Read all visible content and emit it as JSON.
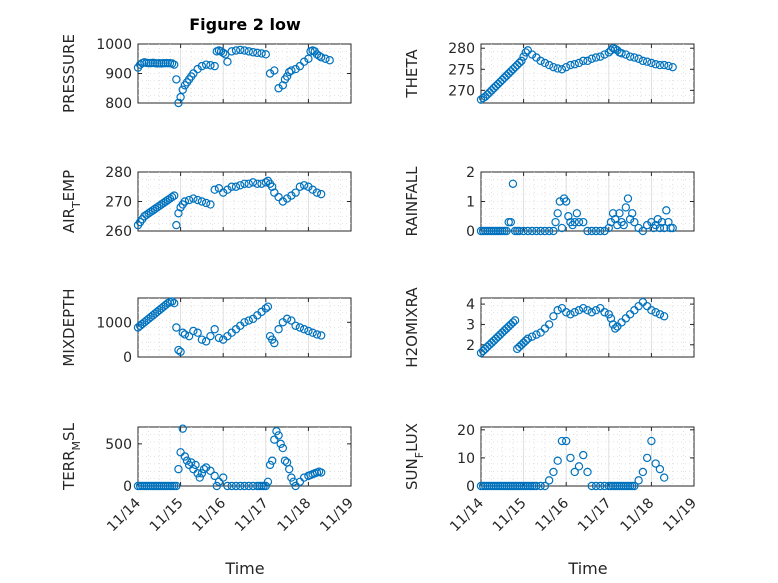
{
  "figure": {
    "title": "Figure 2 low",
    "x_axis_label": "Time",
    "x_tick_labels": [
      "11/14",
      "11/15",
      "11/16",
      "11/17",
      "11/18",
      "11/19"
    ]
  },
  "chart_data": [
    {
      "type": "scatter",
      "ylabel_main": "PRESSURE",
      "ylabel_sub": "",
      "ylim": [
        800,
        1000
      ],
      "yticks": [
        800,
        900,
        1000
      ],
      "xlim": [
        0,
        5
      ],
      "grid": true,
      "color": "#0072BD",
      "marker": "circle-open",
      "x": [
        0,
        0.05,
        0.1,
        0.15,
        0.2,
        0.25,
        0.3,
        0.35,
        0.4,
        0.45,
        0.5,
        0.55,
        0.6,
        0.65,
        0.7,
        0.75,
        0.8,
        0.85,
        0.9,
        0.95,
        1.0,
        1.05,
        1.1,
        1.15,
        1.2,
        1.25,
        1.3,
        1.4,
        1.5,
        1.6,
        1.7,
        1.8,
        1.85,
        1.9,
        1.95,
        2.0,
        2.05,
        2.1,
        2.2,
        2.3,
        2.4,
        2.5,
        2.6,
        2.7,
        2.8,
        2.9,
        3.0,
        3.1,
        3.2,
        3.3,
        3.4,
        3.45,
        3.5,
        3.55,
        3.6,
        3.7,
        3.8,
        3.9,
        4.0,
        4.05,
        4.1,
        4.15,
        4.2,
        4.25,
        4.3,
        4.4,
        4.5
      ],
      "y": [
        920,
        930,
        935,
        938,
        936,
        935,
        935,
        936,
        935,
        934,
        935,
        934,
        935,
        935,
        935,
        935,
        934,
        930,
        880,
        795,
        820,
        845,
        860,
        870,
        880,
        890,
        900,
        915,
        925,
        930,
        928,
        925,
        975,
        978,
        975,
        970,
        965,
        940,
        975,
        978,
        980,
        978,
        975,
        972,
        970,
        968,
        965,
        900,
        910,
        850,
        860,
        880,
        890,
        905,
        910,
        915,
        925,
        940,
        950,
        975,
        978,
        975,
        965,
        960,
        955,
        950,
        945
      ]
    },
    {
      "type": "scatter",
      "ylabel_main": "THETA",
      "ylabel_sub": "",
      "ylim": [
        267,
        281
      ],
      "yticks": [
        270,
        275,
        280
      ],
      "xlim": [
        0,
        5
      ],
      "grid": true,
      "color": "#0072BD",
      "marker": "circle-open",
      "x": [
        0,
        0.05,
        0.1,
        0.15,
        0.2,
        0.25,
        0.3,
        0.35,
        0.4,
        0.45,
        0.5,
        0.55,
        0.6,
        0.65,
        0.7,
        0.75,
        0.8,
        0.85,
        0.9,
        0.95,
        1.0,
        1.05,
        1.1,
        1.2,
        1.3,
        1.4,
        1.5,
        1.6,
        1.7,
        1.8,
        1.9,
        2.0,
        2.1,
        2.2,
        2.3,
        2.4,
        2.5,
        2.6,
        2.7,
        2.8,
        2.9,
        3.0,
        3.05,
        3.1,
        3.15,
        3.2,
        3.25,
        3.3,
        3.4,
        3.5,
        3.6,
        3.7,
        3.8,
        3.9,
        4.0,
        4.1,
        4.2,
        4.3,
        4.4,
        4.5
      ],
      "y": [
        267.8,
        268.2,
        268.5,
        269.0,
        269.5,
        270.0,
        270.5,
        271.0,
        271.5,
        272.0,
        272.5,
        273.0,
        273.5,
        274.0,
        274.5,
        275.0,
        275.5,
        276.0,
        276.5,
        277.0,
        278.0,
        279.0,
        279.5,
        278.5,
        277.8,
        277.0,
        276.5,
        276.0,
        275.5,
        275.2,
        275.0,
        275.5,
        276.0,
        276.2,
        276.5,
        277.0,
        277.0,
        277.5,
        277.8,
        278.0,
        278.5,
        279.0,
        279.5,
        280.0,
        279.8,
        279.5,
        279.0,
        278.8,
        278.5,
        278.0,
        277.8,
        277.5,
        277.0,
        276.8,
        276.5,
        276.2,
        276.0,
        276.0,
        275.8,
        275.5
      ]
    },
    {
      "type": "scatter",
      "ylabel_main": "AIR",
      "ylabel_sub": "T",
      "ylabel_rest": "EMP",
      "ylim": [
        260,
        280
      ],
      "yticks": [
        260,
        270,
        280
      ],
      "xlim": [
        0,
        5
      ],
      "grid": true,
      "color": "#0072BD",
      "marker": "circle-open",
      "x": [
        0,
        0.05,
        0.1,
        0.15,
        0.2,
        0.25,
        0.3,
        0.35,
        0.4,
        0.45,
        0.5,
        0.55,
        0.6,
        0.65,
        0.7,
        0.75,
        0.8,
        0.85,
        0.9,
        0.95,
        1.0,
        1.05,
        1.1,
        1.2,
        1.3,
        1.4,
        1.5,
        1.6,
        1.7,
        1.8,
        1.9,
        2.0,
        2.1,
        2.2,
        2.3,
        2.4,
        2.5,
        2.6,
        2.7,
        2.8,
        2.9,
        3.0,
        3.05,
        3.1,
        3.15,
        3.2,
        3.3,
        3.4,
        3.5,
        3.6,
        3.7,
        3.8,
        3.9,
        4.0,
        4.1,
        4.2,
        4.3
      ],
      "y": [
        262,
        263,
        264,
        265,
        265.5,
        266,
        266.5,
        267,
        267.5,
        268,
        268.5,
        269,
        269.5,
        270,
        270.5,
        271,
        271.5,
        272,
        262,
        266,
        268,
        269,
        270,
        270.5,
        271,
        270.5,
        270,
        269.5,
        269,
        274,
        274.5,
        273,
        274,
        275,
        275,
        275.5,
        276,
        276,
        276.5,
        276,
        276,
        276.5,
        277,
        276,
        275,
        273,
        271.5,
        270,
        271,
        272,
        273,
        275,
        275.5,
        275,
        274,
        273,
        272.5
      ]
    },
    {
      "type": "scatter",
      "ylabel_main": "RAINFALL",
      "ylabel_sub": "",
      "ylim": [
        0,
        2
      ],
      "yticks": [
        0,
        1,
        2
      ],
      "xlim": [
        0,
        5
      ],
      "grid": true,
      "color": "#0072BD",
      "marker": "circle-open",
      "x": [
        0,
        0.05,
        0.1,
        0.15,
        0.2,
        0.25,
        0.3,
        0.35,
        0.4,
        0.45,
        0.5,
        0.55,
        0.6,
        0.65,
        0.7,
        0.75,
        0.8,
        0.85,
        0.9,
        1.0,
        1.1,
        1.2,
        1.3,
        1.4,
        1.5,
        1.6,
        1.7,
        1.75,
        1.8,
        1.85,
        1.9,
        1.95,
        2.0,
        2.05,
        2.1,
        2.15,
        2.2,
        2.25,
        2.3,
        2.4,
        2.5,
        2.6,
        2.7,
        2.8,
        2.9,
        3.0,
        3.05,
        3.1,
        3.15,
        3.2,
        3.25,
        3.3,
        3.35,
        3.4,
        3.45,
        3.5,
        3.55,
        3.6,
        3.7,
        3.8,
        3.9,
        4.0,
        4.05,
        4.1,
        4.15,
        4.2,
        4.25,
        4.3,
        4.35,
        4.4,
        4.45,
        4.5
      ],
      "y": [
        0,
        0,
        0,
        0,
        0,
        0,
        0,
        0,
        0,
        0,
        0,
        0,
        0,
        0.3,
        0.3,
        1.6,
        0,
        0,
        0,
        0,
        0,
        0,
        0,
        0,
        0,
        0,
        0,
        0.3,
        0.6,
        1.0,
        0.1,
        1.1,
        1.0,
        0.5,
        0.3,
        0.2,
        0.3,
        0.6,
        0.3,
        0.3,
        0,
        0,
        0,
        0,
        0,
        0.1,
        0.3,
        0.6,
        0.4,
        0.2,
        0.6,
        0.3,
        0.2,
        0.8,
        1.1,
        0.4,
        0.6,
        0.3,
        0.1,
        0,
        0.2,
        0.3,
        0.1,
        0.2,
        0.4,
        0.1,
        0.3,
        0.1,
        0.7,
        0.3,
        0.1,
        0.1
      ]
    },
    {
      "type": "scatter",
      "ylabel_main": "MIXDEPTH",
      "ylabel_sub": "",
      "ylim": [
        0,
        1700
      ],
      "yticks": [
        0,
        1000
      ],
      "xlim": [
        0,
        5
      ],
      "grid": true,
      "color": "#0072BD",
      "marker": "circle-open",
      "x": [
        0,
        0.05,
        0.1,
        0.15,
        0.2,
        0.25,
        0.3,
        0.35,
        0.4,
        0.45,
        0.5,
        0.55,
        0.6,
        0.65,
        0.7,
        0.75,
        0.8,
        0.85,
        0.9,
        0.95,
        1.0,
        1.05,
        1.1,
        1.2,
        1.3,
        1.4,
        1.5,
        1.6,
        1.7,
        1.8,
        1.9,
        2.0,
        2.1,
        2.2,
        2.3,
        2.4,
        2.5,
        2.6,
        2.7,
        2.8,
        2.9,
        3.0,
        3.05,
        3.1,
        3.15,
        3.2,
        3.3,
        3.4,
        3.5,
        3.6,
        3.7,
        3.8,
        3.9,
        4.0,
        4.1,
        4.2,
        4.3
      ],
      "y": [
        850,
        900,
        950,
        1000,
        1050,
        1100,
        1150,
        1200,
        1250,
        1300,
        1350,
        1400,
        1450,
        1500,
        1550,
        1580,
        1600,
        1550,
        850,
        200,
        150,
        700,
        650,
        600,
        750,
        700,
        500,
        450,
        600,
        800,
        550,
        500,
        600,
        700,
        800,
        900,
        1000,
        1050,
        1100,
        1200,
        1300,
        1400,
        1450,
        600,
        500,
        400,
        800,
        1000,
        1100,
        1050,
        900,
        850,
        800,
        750,
        700,
        650,
        620
      ]
    },
    {
      "type": "scatter",
      "ylabel_main": "H2OMIXRA",
      "ylabel_sub": "",
      "ylim": [
        1.4,
        4.3
      ],
      "yticks": [
        2,
        3,
        4
      ],
      "xlim": [
        0,
        5
      ],
      "grid": true,
      "color": "#0072BD",
      "marker": "circle-open",
      "x": [
        0,
        0.05,
        0.1,
        0.15,
        0.2,
        0.25,
        0.3,
        0.35,
        0.4,
        0.45,
        0.5,
        0.55,
        0.6,
        0.65,
        0.7,
        0.75,
        0.8,
        0.85,
        0.9,
        0.95,
        1.0,
        1.05,
        1.1,
        1.2,
        1.3,
        1.4,
        1.5,
        1.6,
        1.7,
        1.8,
        1.9,
        2.0,
        2.1,
        2.2,
        2.3,
        2.4,
        2.5,
        2.6,
        2.7,
        2.8,
        2.9,
        3.0,
        3.05,
        3.1,
        3.15,
        3.2,
        3.3,
        3.4,
        3.5,
        3.6,
        3.7,
        3.8,
        3.9,
        4.0,
        4.1,
        4.2,
        4.3
      ],
      "y": [
        1.6,
        1.7,
        1.8,
        1.9,
        2.0,
        2.1,
        2.2,
        2.3,
        2.4,
        2.5,
        2.6,
        2.7,
        2.8,
        2.9,
        3.0,
        3.1,
        3.2,
        1.8,
        1.9,
        2.0,
        2.1,
        2.2,
        2.3,
        2.4,
        2.5,
        2.6,
        2.8,
        3.0,
        3.4,
        3.7,
        3.8,
        3.6,
        3.5,
        3.6,
        3.7,
        3.8,
        3.7,
        3.6,
        3.7,
        3.8,
        3.6,
        3.5,
        3.3,
        3.0,
        2.8,
        2.9,
        3.1,
        3.3,
        3.5,
        3.7,
        3.9,
        4.1,
        3.9,
        3.7,
        3.6,
        3.5,
        3.4
      ]
    },
    {
      "type": "scatter",
      "ylabel_main": "TERR",
      "ylabel_sub": "M",
      "ylabel_rest": "SL",
      "ylim": [
        0,
        700
      ],
      "yticks": [
        0,
        500
      ],
      "xlim": [
        0,
        5
      ],
      "grid": true,
      "color": "#0072BD",
      "marker": "circle-open",
      "x": [
        0,
        0.05,
        0.1,
        0.15,
        0.2,
        0.25,
        0.3,
        0.35,
        0.4,
        0.45,
        0.5,
        0.55,
        0.6,
        0.65,
        0.7,
        0.75,
        0.8,
        0.85,
        0.9,
        0.95,
        1.0,
        1.05,
        1.1,
        1.15,
        1.2,
        1.25,
        1.3,
        1.35,
        1.4,
        1.45,
        1.5,
        1.55,
        1.6,
        1.7,
        1.8,
        1.85,
        1.9,
        2.0,
        2.1,
        2.2,
        2.3,
        2.4,
        2.5,
        2.6,
        2.7,
        2.8,
        2.85,
        2.9,
        2.95,
        3.0,
        3.05,
        3.1,
        3.15,
        3.2,
        3.25,
        3.3,
        3.35,
        3.4,
        3.45,
        3.5,
        3.55,
        3.6,
        3.65,
        3.7,
        3.8,
        3.9,
        4.0,
        4.05,
        4.1,
        4.15,
        4.2,
        4.25,
        4.3
      ],
      "y": [
        0,
        0,
        0,
        0,
        0,
        0,
        0,
        0,
        0,
        0,
        0,
        0,
        0,
        0,
        0,
        0,
        0,
        0,
        0,
        200,
        400,
        680,
        350,
        300,
        250,
        280,
        200,
        250,
        150,
        100,
        150,
        200,
        220,
        180,
        120,
        0,
        50,
        100,
        0,
        0,
        0,
        0,
        0,
        0,
        0,
        0,
        0,
        0,
        0,
        0,
        50,
        250,
        300,
        550,
        650,
        600,
        500,
        450,
        300,
        280,
        200,
        100,
        50,
        0,
        50,
        100,
        120,
        130,
        140,
        150,
        160,
        170,
        160
      ]
    },
    {
      "type": "scatter",
      "ylabel_main": "SUN",
      "ylabel_sub": "F",
      "ylabel_rest": "LUX",
      "ylim": [
        0,
        21
      ],
      "yticks": [
        0,
        10,
        20
      ],
      "xlim": [
        0,
        5
      ],
      "grid": true,
      "color": "#0072BD",
      "marker": "circle-open",
      "x": [
        0,
        0.05,
        0.1,
        0.15,
        0.2,
        0.25,
        0.3,
        0.35,
        0.4,
        0.45,
        0.5,
        0.55,
        0.6,
        0.65,
        0.7,
        0.75,
        0.8,
        0.85,
        0.9,
        0.95,
        1.0,
        1.05,
        1.1,
        1.15,
        1.2,
        1.25,
        1.3,
        1.4,
        1.5,
        1.6,
        1.7,
        1.8,
        1.9,
        2.0,
        2.1,
        2.2,
        2.3,
        2.4,
        2.5,
        2.6,
        2.7,
        2.8,
        2.9,
        3.0,
        3.05,
        3.1,
        3.15,
        3.2,
        3.25,
        3.3,
        3.35,
        3.4,
        3.45,
        3.5,
        3.55,
        3.6,
        3.7,
        3.8,
        3.9,
        4.0,
        4.1,
        4.2,
        4.3
      ],
      "y": [
        0,
        0,
        0,
        0,
        0,
        0,
        0,
        0,
        0,
        0,
        0,
        0,
        0,
        0,
        0,
        0,
        0,
        0,
        0,
        0,
        0,
        0,
        0,
        0,
        0,
        0,
        0,
        0,
        0,
        2,
        5,
        9,
        16,
        16,
        10,
        5,
        7,
        11,
        5,
        0,
        0,
        0,
        0,
        0,
        0,
        0,
        0,
        0,
        0,
        0,
        0,
        0,
        0,
        0,
        0,
        0,
        2,
        5,
        10,
        16,
        8,
        6,
        3
      ]
    }
  ]
}
